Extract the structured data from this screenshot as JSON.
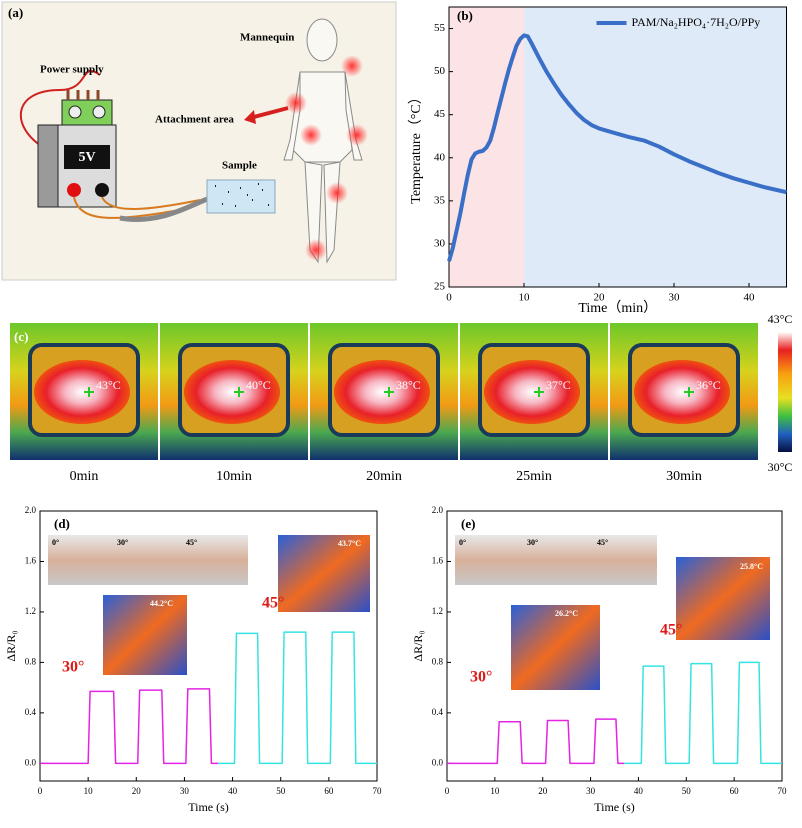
{
  "panel_a": {
    "label": "(a)",
    "mannequin": "Mannequin",
    "power_supply": "Power supply",
    "attachment_area": "Attachment area",
    "voltage": "5V",
    "sample": "Sample"
  },
  "panel_c": {
    "label": "(c)",
    "temperatures": [
      "43°C",
      "40°C",
      "38°C",
      "37°C",
      "36°C"
    ],
    "times": [
      "0min",
      "10min",
      "20min",
      "25min",
      "30min"
    ],
    "colorbar": [
      "43°C",
      "30°C"
    ]
  },
  "chart_data": [
    {
      "type": "line",
      "title": "(b)",
      "xlabel": "Time（min）",
      "ylabel": "Temperature（°C）",
      "xlim": [
        0,
        45
      ],
      "xticks": [
        0,
        10,
        20,
        30,
        40
      ],
      "ylim": [
        25,
        57.5
      ],
      "yticks": [
        25,
        30,
        35,
        40,
        45,
        50,
        55
      ],
      "legend": "upper right",
      "shading": [
        {
          "range": [
            0,
            10
          ],
          "color": "#fbd9dc"
        },
        {
          "range": [
            10,
            45
          ],
          "color": "#d3e3f4"
        }
      ],
      "series": [
        {
          "name": "PAM/Na₂HPO₄·7H₂O/PPy",
          "color": "#3a6fc8",
          "x": [
            0,
            0.5,
            1,
            1.5,
            2,
            2.5,
            3,
            3.5,
            4,
            4.5,
            5,
            5.5,
            6,
            6.5,
            7,
            7.5,
            8,
            8.5,
            9,
            9.5,
            10,
            10.5,
            11,
            12,
            13,
            14,
            15,
            16,
            17,
            18,
            19,
            20,
            22,
            24,
            26,
            28,
            30,
            32,
            34,
            36,
            38,
            40,
            42,
            44,
            45
          ],
          "values": [
            28,
            29.5,
            31.5,
            33.5,
            35.8,
            38,
            39.8,
            40.5,
            40.7,
            40.8,
            41.2,
            42,
            43.5,
            45.3,
            47,
            48.7,
            50.3,
            51.7,
            53,
            53.8,
            54.2,
            54.1,
            53.3,
            51.6,
            50,
            48.6,
            47.3,
            46.2,
            45.2,
            44.4,
            43.8,
            43.4,
            42.9,
            42.4,
            42,
            41.3,
            40.4,
            39.6,
            38.9,
            38.2,
            37.6,
            37.1,
            36.6,
            36.2,
            36
          ]
        }
      ]
    },
    {
      "type": "line",
      "title": "(d)",
      "xlabel": "Time (s)",
      "ylabel": "ΔR/R₀",
      "xlim": [
        0,
        70
      ],
      "xticks": [
        0,
        10,
        20,
        30,
        40,
        50,
        60,
        70
      ],
      "ylim": [
        -0.14,
        2.0
      ],
      "yticks": [
        {
          "value": 0,
          "label": "0.0"
        },
        0.4,
        0.8,
        1.2,
        1.6,
        {
          "value": 2,
          "label": "2.0"
        }
      ],
      "annotations": [
        "0°",
        "30°",
        "45°",
        "44.2°C",
        "43.7°C"
      ],
      "series": [
        {
          "name": "30°",
          "color": "#e324e3",
          "x": [
            0,
            10,
            10.4,
            15.3,
            15.7,
            20.3,
            20.7,
            25.3,
            25.7,
            30.3,
            30.7,
            35.2,
            35.6,
            37
          ],
          "values": [
            0,
            0,
            0.57,
            0.57,
            0,
            0,
            0.58,
            0.58,
            0,
            0,
            0.59,
            0.59,
            0,
            0
          ]
        },
        {
          "name": "45°",
          "color": "#36e3e3",
          "x": [
            37,
            40.4,
            40.8,
            45.2,
            45.6,
            50.3,
            50.7,
            55.2,
            55.6,
            60.3,
            60.7,
            65.2,
            65.6,
            70
          ],
          "values": [
            0,
            0,
            1.03,
            1.03,
            0,
            0,
            1.04,
            1.04,
            0,
            0,
            1.04,
            1.04,
            0,
            0
          ]
        }
      ]
    },
    {
      "type": "line",
      "title": "(e)",
      "xlabel": "Time (s)",
      "ylabel": "ΔR/R₀",
      "xlim": [
        0,
        70
      ],
      "xticks": [
        0,
        10,
        20,
        30,
        40,
        50,
        60,
        70
      ],
      "ylim": [
        -0.14,
        2.0
      ],
      "yticks": [
        {
          "value": 0,
          "label": "0.0"
        },
        0.4,
        0.8,
        1.2,
        1.6,
        {
          "value": 2,
          "label": "2.0"
        }
      ],
      "annotations": [
        "0°",
        "30°",
        "45°",
        "26.2°C",
        "25.8°C"
      ],
      "series": [
        {
          "name": "30°",
          "color": "#e324e3",
          "x": [
            0,
            10.5,
            10.9,
            15.3,
            15.7,
            20.6,
            21,
            25.3,
            25.7,
            30.7,
            31.1,
            35.3,
            35.7,
            37
          ],
          "values": [
            0,
            0,
            0.33,
            0.33,
            0,
            0,
            0.34,
            0.34,
            0,
            0,
            0.35,
            0.35,
            0,
            0
          ]
        },
        {
          "name": "45°",
          "color": "#36e3e3",
          "x": [
            37,
            40.6,
            41,
            45.3,
            45.7,
            50.6,
            51,
            55.3,
            55.7,
            60.7,
            61.1,
            65.2,
            65.6,
            70
          ],
          "values": [
            0,
            0,
            0.77,
            0.77,
            0,
            0,
            0.79,
            0.79,
            0,
            0,
            0.8,
            0.8,
            0,
            0
          ]
        }
      ]
    }
  ]
}
